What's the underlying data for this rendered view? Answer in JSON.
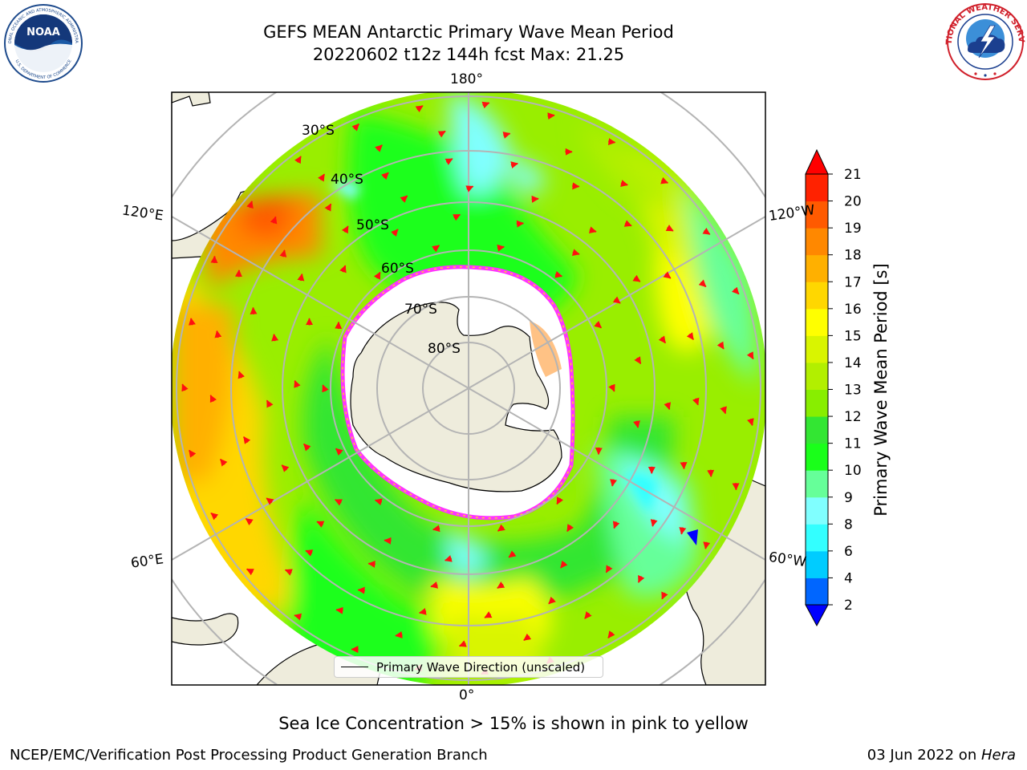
{
  "header": {
    "title_line1": "GEFS MEAN Antarctic Primary Wave Mean Period",
    "title_line2": "20220602 t12z 144h fcst   Max: 21.25"
  },
  "logos": {
    "left": {
      "name": "NOAA",
      "ring_text": "NATIONAL OCEANIC AND ATMOSPHERIC ADMINISTRATION",
      "bottom_text": "U.S. DEPARTMENT OF COMMERCE"
    },
    "right": {
      "ring_text": "NATIONAL WEATHER SERVICE"
    }
  },
  "map": {
    "projection": "south-polar-stereographic",
    "lon_labels": {
      "top": "180°",
      "bottom": "0°",
      "upper_left": "120°E",
      "upper_right": "120°W",
      "lower_left": "60°E",
      "lower_right": "60°W"
    },
    "lat_labels": [
      "30°S",
      "40°S",
      "50°S",
      "60°S",
      "70°S",
      "80°S"
    ],
    "legend_label": "Primary Wave Direction (unscaled)"
  },
  "colorbar": {
    "label": "Primary Wave Mean Period [s]",
    "ticks": [
      "2",
      "4",
      "6",
      "8",
      "9",
      "10",
      "11",
      "12",
      "13",
      "14",
      "15",
      "16",
      "17",
      "18",
      "19",
      "20",
      "21"
    ],
    "colors": [
      "#0000ff",
      "#0066ff",
      "#00ccff",
      "#33ffff",
      "#80ffff",
      "#66ff99",
      "#1aff1a",
      "#33e633",
      "#88ee00",
      "#b2ef00",
      "#d9f500",
      "#ffff00",
      "#ffd700",
      "#ffb000",
      "#ff8800",
      "#ff5a00",
      "#ff2200",
      "#ff0000"
    ]
  },
  "notes": {
    "ice": "Sea Ice Concentration > 15% is shown in pink to yellow"
  },
  "footer": {
    "left": "NCEP/EMC/Verification Post Processing Product Generation Branch",
    "right_prefix": "03 Jun 2022 on ",
    "right_italic": "Hera"
  }
}
